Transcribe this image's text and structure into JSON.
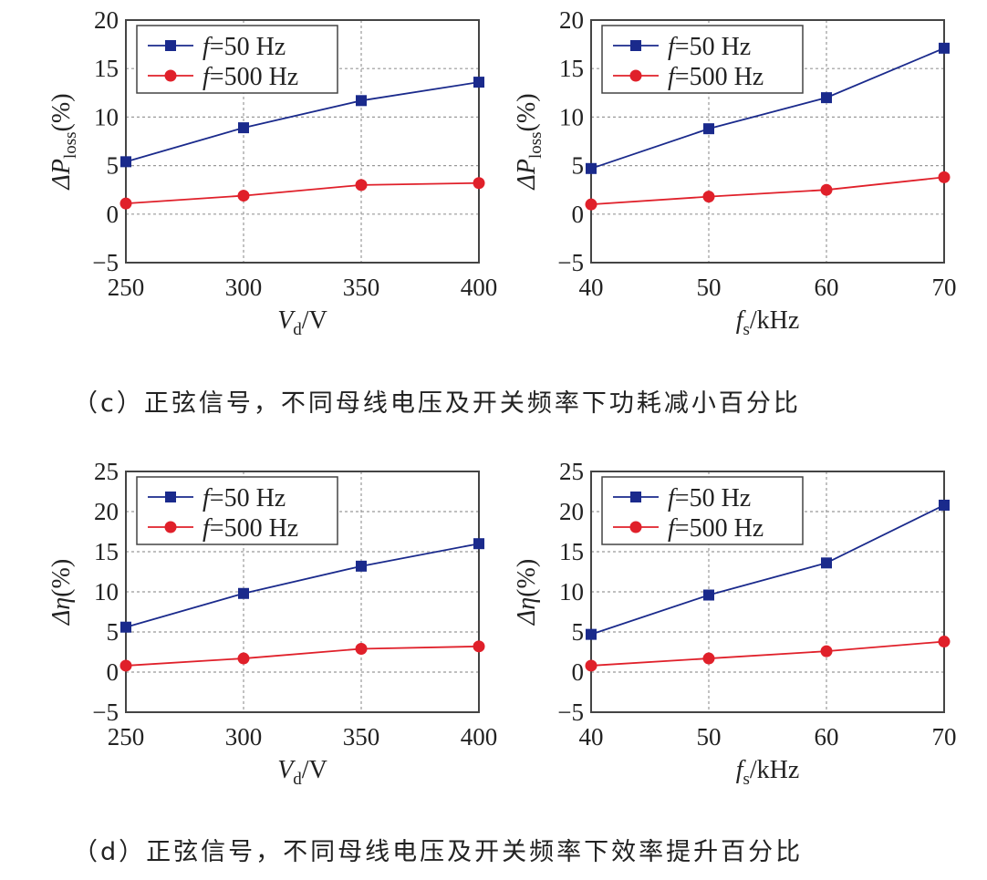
{
  "colors": {
    "series_50": "#1a2a8c",
    "series_500": "#e0202a",
    "grid": "#999999",
    "axis": "#444444"
  },
  "captions": {
    "c": "（c）正弦信号，不同母线电压及开关频率下功耗减小百分比",
    "d": "（d）正弦信号，不同母线电压及开关频率下效率提升百分比"
  },
  "chart_data": [
    {
      "type": "line",
      "panel": "c-left",
      "x": [
        250,
        300,
        350,
        400
      ],
      "xticks": [
        "250",
        "300",
        "350",
        "400"
      ],
      "xlabel": {
        "main": "V",
        "sub": "d",
        "tail": "/V"
      },
      "ylabel": {
        "main": "ΔP",
        "sub": "loss",
        "tail": "(%)"
      },
      "ylim": [
        -5,
        20
      ],
      "yticks": [
        -5,
        0,
        5,
        10,
        15,
        20
      ],
      "grid": true,
      "legend": "top-left",
      "series": [
        {
          "name": "f=50 Hz",
          "marker": "square",
          "values": [
            5.4,
            8.9,
            11.7,
            13.6
          ]
        },
        {
          "name": "f=500 Hz",
          "marker": "circle",
          "values": [
            1.1,
            1.9,
            3.0,
            3.2
          ]
        }
      ]
    },
    {
      "type": "line",
      "panel": "c-right",
      "x": [
        40,
        50,
        60,
        70
      ],
      "xticks": [
        "40",
        "50",
        "60",
        "70"
      ],
      "xlabel": {
        "main": "f",
        "sub": "s",
        "tail": "/kHz"
      },
      "ylabel": {
        "main": "ΔP",
        "sub": "loss",
        "tail": "(%)"
      },
      "ylim": [
        -5,
        20
      ],
      "yticks": [
        -5,
        0,
        5,
        10,
        15,
        20
      ],
      "grid": true,
      "legend": "top-left",
      "series": [
        {
          "name": "f=50 Hz",
          "marker": "square",
          "values": [
            4.7,
            8.8,
            12.0,
            17.1
          ]
        },
        {
          "name": "f=500 Hz",
          "marker": "circle",
          "values": [
            1.0,
            1.8,
            2.5,
            3.8
          ]
        }
      ]
    },
    {
      "type": "line",
      "panel": "d-left",
      "x": [
        250,
        300,
        350,
        400
      ],
      "xticks": [
        "250",
        "300",
        "350",
        "400"
      ],
      "xlabel": {
        "main": "V",
        "sub": "d",
        "tail": "/V"
      },
      "ylabel": {
        "main": "Δη",
        "sub": "",
        "tail": "(%)"
      },
      "ylim": [
        -5,
        25
      ],
      "yticks": [
        -5,
        0,
        5,
        10,
        15,
        20,
        25
      ],
      "grid": true,
      "legend": "top-left",
      "series": [
        {
          "name": "f=50 Hz",
          "marker": "square",
          "values": [
            5.6,
            9.8,
            13.2,
            16.0
          ]
        },
        {
          "name": "f=500 Hz",
          "marker": "circle",
          "values": [
            0.8,
            1.7,
            2.9,
            3.2
          ]
        }
      ]
    },
    {
      "type": "line",
      "panel": "d-right",
      "x": [
        40,
        50,
        60,
        70
      ],
      "xticks": [
        "40",
        "50",
        "60",
        "70"
      ],
      "xlabel": {
        "main": "f",
        "sub": "s",
        "tail": "/kHz"
      },
      "ylabel": {
        "main": "Δη",
        "sub": "",
        "tail": "(%)"
      },
      "ylim": [
        -5,
        25
      ],
      "yticks": [
        -5,
        0,
        5,
        10,
        15,
        20,
        25
      ],
      "grid": true,
      "legend": "top-left",
      "series": [
        {
          "name": "f=50 Hz",
          "marker": "square",
          "values": [
            4.7,
            9.6,
            13.6,
            20.8
          ]
        },
        {
          "name": "f=500 Hz",
          "marker": "circle",
          "values": [
            0.8,
            1.7,
            2.6,
            3.8
          ]
        }
      ]
    }
  ]
}
